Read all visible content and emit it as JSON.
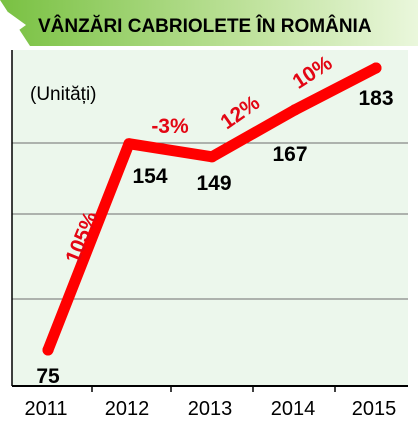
{
  "chart_data": {
    "type": "line",
    "title": "VÂNZĂRI CABRIOLETE ÎN ROMÂNIA",
    "unit_label": "(Unități)",
    "categories": [
      "2011",
      "2012",
      "2013",
      "2014",
      "2015"
    ],
    "values": [
      75,
      154,
      149,
      167,
      183
    ],
    "value_labels": [
      "75",
      "154",
      "149",
      "167",
      "183"
    ],
    "growth_labels": [
      "105%",
      "-3%",
      "12%",
      "10%"
    ],
    "ylim": [
      60,
      200
    ],
    "grid": true,
    "xlabel": "",
    "ylabel": ""
  },
  "colors": {
    "line": "#ff0000",
    "growth_text": "#e30613",
    "title_bar": "#79c142",
    "title_bar_light": "#eaf7dc",
    "plot_background": "#ecf7ec",
    "grid": "#6e6e6e",
    "axis": "#000000"
  }
}
